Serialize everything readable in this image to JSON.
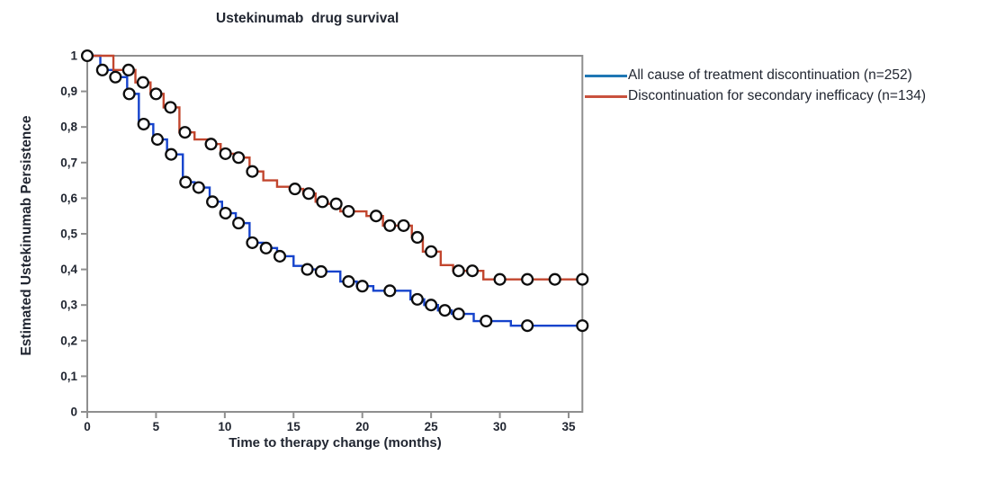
{
  "chart_data": {
    "type": "line",
    "subtype": "kaplan-meier-step-curves",
    "title": "Ustekinumab  drug survival",
    "xlabel": "Time to therapy change (months)",
    "ylabel": "Estimated Ustekinumab Persistence",
    "xlim": [
      0,
      36
    ],
    "ylim": [
      0,
      1
    ],
    "grid": false,
    "legend_position": "top-right-outside",
    "frame_color": "#8f8f8f",
    "text_color": "#212631",
    "marker": {
      "shape": "circle",
      "fill": "#ffffff",
      "stroke": "#0d0d0d"
    },
    "xticks": [
      {
        "v": 0,
        "label": "0"
      },
      {
        "v": 5,
        "label": "5"
      },
      {
        "v": 10,
        "label": "10"
      },
      {
        "v": 15,
        "label": "15"
      },
      {
        "v": 20,
        "label": "20"
      },
      {
        "v": 25,
        "label": "25"
      },
      {
        "v": 30,
        "label": "30"
      },
      {
        "v": 35,
        "label": "35"
      }
    ],
    "yticks": [
      {
        "v": 1.0,
        "label": "1"
      },
      {
        "v": 0.9,
        "label": "0,9"
      },
      {
        "v": 0.8,
        "label": "0,8"
      },
      {
        "v": 0.7,
        "label": "0,7"
      },
      {
        "v": 0.6,
        "label": "0,6"
      },
      {
        "v": 0.5,
        "label": "0,5"
      },
      {
        "v": 0.4,
        "label": "0,4"
      },
      {
        "v": 0.3,
        "label": "0,3"
      },
      {
        "v": 0.2,
        "label": "0,2"
      },
      {
        "v": 0.1,
        "label": "0,1"
      },
      {
        "v": 0.0,
        "label": "0"
      }
    ],
    "series": [
      {
        "name": "All cause of treatment discontinuation (n=252)",
        "color": "#1543cc",
        "legend_color": "#1f77b4",
        "steps": [
          [
            0,
            1.0
          ],
          [
            0.95,
            0.96
          ],
          [
            1.9,
            0.94
          ],
          [
            2.9,
            0.893
          ],
          [
            3.75,
            0.808
          ],
          [
            4.8,
            0.765
          ],
          [
            5.8,
            0.723
          ],
          [
            6.95,
            0.645
          ],
          [
            7.8,
            0.63
          ],
          [
            8.9,
            0.59
          ],
          [
            9.8,
            0.558
          ],
          [
            10.8,
            0.53
          ],
          [
            11.8,
            0.475
          ],
          [
            12.8,
            0.46
          ],
          [
            13.8,
            0.437
          ],
          [
            15,
            0.41
          ],
          [
            15.7,
            0.4
          ],
          [
            16.8,
            0.394
          ],
          [
            18.4,
            0.366
          ],
          [
            19.6,
            0.353
          ],
          [
            20.8,
            0.34
          ],
          [
            23.5,
            0.316
          ],
          [
            24.5,
            0.3
          ],
          [
            25.5,
            0.285
          ],
          [
            26.5,
            0.275
          ],
          [
            28.1,
            0.255
          ],
          [
            30.8,
            0.242
          ],
          [
            36,
            0.242
          ]
        ],
        "censor_marks": [
          [
            0,
            1.0
          ],
          [
            1.1,
            0.96
          ],
          [
            2.05,
            0.94
          ],
          [
            3.05,
            0.893
          ],
          [
            4.1,
            0.808
          ],
          [
            5.1,
            0.765
          ],
          [
            6.1,
            0.723
          ],
          [
            7.15,
            0.645
          ],
          [
            8.1,
            0.63
          ],
          [
            9.1,
            0.59
          ],
          [
            10.05,
            0.558
          ],
          [
            11,
            0.53
          ],
          [
            12,
            0.475
          ],
          [
            13,
            0.46
          ],
          [
            14,
            0.437
          ],
          [
            16,
            0.4
          ],
          [
            17,
            0.394
          ],
          [
            19,
            0.366
          ],
          [
            20,
            0.353
          ],
          [
            22,
            0.34
          ],
          [
            24,
            0.316
          ],
          [
            25,
            0.3
          ],
          [
            26,
            0.285
          ],
          [
            27,
            0.275
          ],
          [
            29,
            0.255
          ],
          [
            32,
            0.242
          ],
          [
            36,
            0.242
          ]
        ]
      },
      {
        "name": "Discontinuation for secondary inefficacy (n=134)",
        "color": "#c2462e",
        "legend_color": "#c9513e",
        "steps": [
          [
            0,
            1.0
          ],
          [
            1.9,
            0.96
          ],
          [
            3.5,
            0.925
          ],
          [
            4.6,
            0.893
          ],
          [
            5.55,
            0.855
          ],
          [
            6.7,
            0.785
          ],
          [
            7.8,
            0.765
          ],
          [
            8.8,
            0.752
          ],
          [
            9.7,
            0.725
          ],
          [
            10.8,
            0.714
          ],
          [
            11.8,
            0.675
          ],
          [
            12.8,
            0.65
          ],
          [
            13.8,
            0.632
          ],
          [
            14.7,
            0.626
          ],
          [
            15.7,
            0.613
          ],
          [
            16.6,
            0.59
          ],
          [
            17.5,
            0.584
          ],
          [
            18.4,
            0.563
          ],
          [
            20.3,
            0.55
          ],
          [
            21.5,
            0.523
          ],
          [
            23.6,
            0.49
          ],
          [
            24.4,
            0.45
          ],
          [
            25.7,
            0.412
          ],
          [
            26.6,
            0.396
          ],
          [
            28.8,
            0.372
          ],
          [
            36,
            0.372
          ]
        ],
        "censor_marks": [
          [
            3,
            0.96
          ],
          [
            4.05,
            0.925
          ],
          [
            5,
            0.893
          ],
          [
            6.05,
            0.855
          ],
          [
            7.1,
            0.785
          ],
          [
            9,
            0.752
          ],
          [
            10.05,
            0.725
          ],
          [
            11,
            0.714
          ],
          [
            12,
            0.675
          ],
          [
            15.1,
            0.626
          ],
          [
            16.1,
            0.613
          ],
          [
            17.1,
            0.59
          ],
          [
            18.1,
            0.584
          ],
          [
            19,
            0.563
          ],
          [
            21,
            0.55
          ],
          [
            22,
            0.523
          ],
          [
            23,
            0.523
          ],
          [
            24,
            0.49
          ],
          [
            25,
            0.45
          ],
          [
            27,
            0.396
          ],
          [
            28,
            0.396
          ],
          [
            30,
            0.372
          ],
          [
            32,
            0.372
          ],
          [
            34,
            0.372
          ],
          [
            36,
            0.372
          ]
        ]
      }
    ]
  }
}
